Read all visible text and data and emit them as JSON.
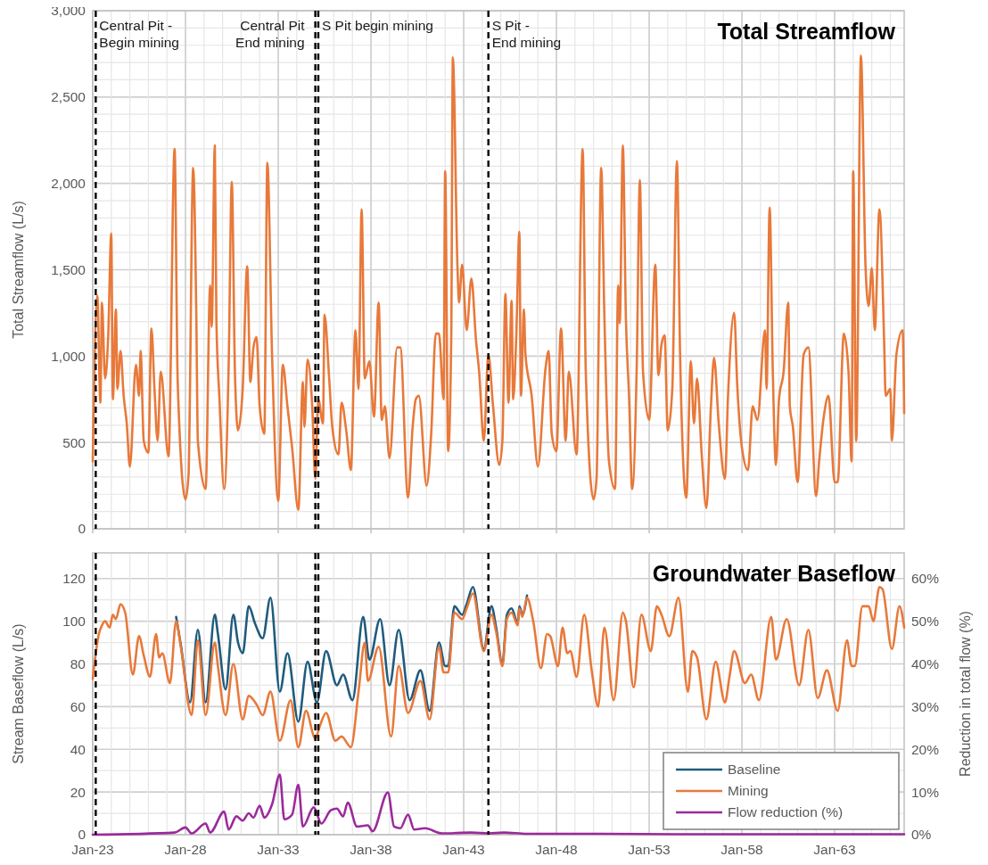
{
  "chart_data": [
    {
      "type": "line",
      "title": "Total Streamflow",
      "ylabel": "Total Streamflow (L/s)",
      "xlim": [
        "2023-01",
        "2066-10"
      ],
      "xticks": [
        {
          "value": "2023-01",
          "label": null
        },
        {
          "value": "2028-01",
          "label": null
        },
        {
          "value": "2033-01",
          "label": null
        },
        {
          "value": "2038-01",
          "label": null
        },
        {
          "value": "2043-01",
          "label": null
        },
        {
          "value": "2048-01",
          "label": null
        },
        {
          "value": "2053-01",
          "label": null
        },
        {
          "value": "2058-01",
          "label": null
        },
        {
          "value": "2063-01",
          "label": null
        }
      ],
      "ylim": [
        0,
        3000
      ],
      "yticks": [
        0,
        500,
        {
          "value": 1000,
          "label": "1,000"
        },
        {
          "value": 1500,
          "label": "1,500"
        },
        {
          "value": 2000,
          "label": "2,000"
        },
        {
          "value": 2500,
          "label": "2,500"
        },
        {
          "value": 3000,
          "label": "3,000"
        }
      ],
      "tick_labels": "y",
      "grid": true,
      "ref_lines": [
        {
          "axis": "x",
          "value": "2023-03",
          "label": "Central Pit -\nBegin mining",
          "color": "#000000",
          "line_style": "dashed"
        },
        {
          "axis": "x",
          "value": "2035-01",
          "label": "Central Pit\nEnd mining",
          "color": "#000000",
          "line_style": "dashed"
        },
        {
          "axis": "x",
          "value": "2035-03",
          "label": "S Pit begin mining",
          "color": "#000000",
          "line_style": "dashed"
        },
        {
          "axis": "x",
          "value": "2044-05",
          "label": "S Pit -\nEnd mining",
          "color": "#000000",
          "line_style": "dashed"
        }
      ],
      "series": [
        {
          "color": "#e8793a",
          "x": [
            "2023-01",
            "2023-04",
            "2023-06",
            "2023-07",
            "2023-09",
            "2023-11",
            "2024-01",
            "2024-02",
            "2024-04",
            "2024-05",
            "2024-07",
            "2024-09",
            "2024-11",
            "2025-01",
            "2025-05",
            "2025-07",
            "2025-08",
            "2025-10",
            "2026-01",
            "2026-03",
            "2026-05",
            "2026-07",
            "2026-09",
            "2027-02",
            "2027-06",
            "2027-08",
            "2028-01",
            "2028-03",
            "2028-06",
            "2028-08",
            "2028-09",
            "2029-02",
            "2029-05",
            "2029-06",
            "2029-08",
            "2029-09",
            "2029-11",
            "2030-02",
            "2030-05",
            "2030-07",
            "2030-09",
            "2030-11",
            "2031-02",
            "2031-05",
            "2031-07",
            "2031-09",
            "2031-11",
            "2032-01",
            "2032-04",
            "2032-06",
            "2032-09",
            "2033-01",
            "2033-04",
            "2033-07",
            "2033-10",
            "2034-02",
            "2034-05",
            "2034-06",
            "2034-08",
            "2034-11",
            "2035-01",
            "2035-03",
            "2035-06",
            "2035-07",
            "2035-10",
            "2035-12",
            "2036-04",
            "2036-06",
            "2036-09",
            "2036-12",
            "2037-03",
            "2037-05",
            "2037-07",
            "2037-09",
            "2037-12",
            "2038-03",
            "2038-06",
            "2038-08",
            "2038-10",
            "2039-01",
            "2039-06",
            "2039-08",
            "2040-01",
            "2040-04",
            "2040-06",
            "2040-08",
            "2041-01",
            "2041-04",
            "2041-07",
            "2041-09",
            "2041-12",
            "2042-01",
            "2042-03",
            "2042-05",
            "2042-06",
            "2042-09",
            "2042-10",
            "2042-12",
            "2043-03",
            "2043-06",
            "2043-09",
            "2043-11",
            "2044-02",
            "2044-05",
            "2044-08",
            "2044-12",
            "2045-02",
            "2045-04",
            "2045-06",
            "2045-08",
            "2045-09",
            "2045-11",
            "2046-01",
            "2046-02",
            "2046-04",
            "2046-05",
            "2046-09",
            "2047-01",
            "2047-06",
            "2047-08",
            "2047-10",
            "2048-01",
            "2048-04",
            "2048-07",
            "2048-09",
            "2049-02",
            "2049-06",
            "2049-08",
            "2050-01",
            "2050-03",
            "2050-06",
            "2050-08",
            "2050-11",
            "2051-03",
            "2051-05",
            "2051-06",
            "2051-08",
            "2051-10",
            "2051-12",
            "2052-02",
            "2052-05",
            "2052-07",
            "2052-09",
            "2053-01",
            "2053-05",
            "2053-07",
            "2053-09",
            "2053-11",
            "2054-01",
            "2054-04",
            "2054-07",
            "2054-09",
            "2055-01",
            "2055-04",
            "2055-06",
            "2055-08",
            "2055-11",
            "2056-02",
            "2056-05",
            "2056-07",
            "2056-10",
            "2057-02",
            "2057-04",
            "2057-08",
            "2057-10",
            "2058-01",
            "2058-05",
            "2058-08",
            "2058-11",
            "2059-04",
            "2059-05",
            "2059-07",
            "2059-09",
            "2059-11",
            "2060-01",
            "2060-04",
            "2060-07",
            "2060-08",
            "2060-10",
            "2061-01",
            "2061-05",
            "2061-08",
            "2062-01",
            "2062-03",
            "2062-06",
            "2062-09",
            "2063-01",
            "2063-03",
            "2063-07",
            "2063-10",
            "2063-12",
            "2064-01",
            "2064-03",
            "2064-06",
            "2064-09",
            "2064-11",
            "2065-01",
            "2065-03",
            "2065-06",
            "2065-09",
            "2065-10",
            "2066-01",
            "2066-02",
            "2066-05",
            "2066-09",
            "2066-10"
          ],
          "values": [
            390,
            1350,
            730,
            1310,
            870,
            1110,
            1710,
            750,
            1270,
            810,
            1030,
            770,
            610,
            360,
            950,
            770,
            1030,
            510,
            440,
            1160,
            810,
            510,
            910,
            420,
            2200,
            850,
            170,
            310,
            2090,
            1250,
            510,
            230,
            1410,
            1170,
            2220,
            1210,
            750,
            230,
            950,
            2010,
            910,
            570,
            810,
            1520,
            850,
            1050,
            1110,
            710,
            550,
            2120,
            1010,
            160,
            950,
            710,
            470,
            110,
            850,
            590,
            980,
            710,
            290,
            750,
            610,
            1240,
            870,
            590,
            430,
            730,
            570,
            340,
            1150,
            810,
            1850,
            870,
            970,
            650,
            1310,
            630,
            710,
            410,
            1050,
            1050,
            180,
            590,
            750,
            770,
            250,
            550,
            1130,
            1130,
            750,
            2070,
            450,
            1110,
            2730,
            1510,
            1310,
            1530,
            1150,
            1450,
            1090,
            910,
            510,
            1010,
            710,
            370,
            510,
            1360,
            730,
            1320,
            750,
            1110,
            1720,
            770,
            1270,
            1010,
            770,
            360,
            930,
            1030,
            550,
            450,
            1160,
            510,
            910,
            430,
            2200,
            910,
            170,
            290,
            2090,
            1250,
            390,
            230,
            1410,
            1190,
            2220,
            1210,
            770,
            230,
            950,
            2020,
            910,
            630,
            1530,
            890,
            1070,
            1120,
            570,
            810,
            2130,
            1010,
            180,
            970,
            610,
            870,
            430,
            120,
            710,
            990,
            610,
            290,
            760,
            1250,
            830,
            470,
            340,
            710,
            630,
            1150,
            810,
            1860,
            910,
            370,
            750,
            910,
            1310,
            710,
            590,
            270,
            1010,
            1050,
            190,
            390,
            650,
            770,
            270,
            270,
            1130,
            910,
            390,
            2070,
            510,
            2740,
            1510,
            1290,
            1510,
            1150,
            1850,
            1090,
            770,
            810,
            510,
            1010,
            1150,
            670
          ]
        }
      ]
    },
    {
      "type": "line",
      "title": "Groundwater Baseflow",
      "ylabel": "Stream Baseflow (L/s)",
      "y2label": "Reduction in total flow (%)",
      "xlim": [
        "2023-01",
        "2066-10"
      ],
      "xticks": [
        {
          "value": "2023-01",
          "label": "Jan-23"
        },
        {
          "value": "2028-01",
          "label": "Jan-28"
        },
        {
          "value": "2033-01",
          "label": "Jan-33"
        },
        {
          "value": "2038-01",
          "label": "Jan-38"
        },
        {
          "value": "2043-01",
          "label": "Jan-43"
        },
        {
          "value": "2048-01",
          "label": "Jan-48"
        },
        {
          "value": "2053-01",
          "label": "Jan-53"
        },
        {
          "value": "2058-01",
          "label": "Jan-58"
        },
        {
          "value": "2063-01",
          "label": "Jan-63"
        }
      ],
      "ylim": [
        0,
        132
      ],
      "yticks": [
        0,
        20,
        40,
        60,
        80,
        100,
        120
      ],
      "y2lim": [
        0,
        66
      ],
      "y2ticks": [
        {
          "value": 0,
          "label": "0%"
        },
        {
          "value": 10,
          "label": "10%"
        },
        {
          "value": 20,
          "label": "20%"
        },
        {
          "value": 30,
          "label": "30%"
        },
        {
          "value": 40,
          "label": "40%"
        },
        {
          "value": 50,
          "label": "50%"
        },
        {
          "value": 60,
          "label": "60%"
        }
      ],
      "grid": true,
      "legend": "bottom right",
      "ref_lines": [
        {
          "axis": "x",
          "value": "2023-03",
          "color": "#000000",
          "line_style": "dashed"
        },
        {
          "axis": "x",
          "value": "2035-01",
          "color": "#000000",
          "line_style": "dashed"
        },
        {
          "axis": "x",
          "value": "2035-03",
          "color": "#000000",
          "line_style": "dashed"
        },
        {
          "axis": "x",
          "value": "2044-05",
          "color": "#000000",
          "line_style": "dashed"
        }
      ],
      "series": [
        {
          "name": "Baseline",
          "color": "#1f5b7e",
          "x": [
            "2027-07",
            "2027-10",
            "2028-04",
            "2028-09",
            "2029-02",
            "2029-08",
            "2029-10",
            "2030-03",
            "2030-08",
            "2030-11",
            "2031-02",
            "2031-06",
            "2031-10",
            "2032-03",
            "2032-08",
            "2033-02",
            "2033-07",
            "2034-02",
            "2034-08",
            "2035-02",
            "2035-08",
            "2036-03",
            "2036-07",
            "2037-01",
            "2037-08",
            "2037-12",
            "2038-07",
            "2039-01",
            "2039-07",
            "2040-02",
            "2040-09",
            "2041-03",
            "2041-09",
            "2042-01",
            "2042-03",
            "2042-07",
            "2042-12",
            "2043-03",
            "2043-07",
            "2044-02",
            "2044-07",
            "2044-10",
            "2045-02",
            "2045-05",
            "2045-08",
            "2045-12",
            "2046-01",
            "2046-03",
            "2046-06"
          ],
          "values": [
            102,
            89,
            62,
            96,
            62,
            103,
            94,
            68,
            103,
            90,
            85,
            107,
            99,
            92,
            111,
            67,
            85,
            53,
            81,
            62,
            86,
            70,
            75,
            63,
            102,
            82,
            101,
            70,
            96,
            63,
            77,
            58,
            90,
            79,
            79,
            107,
            103,
            108,
            116,
            87,
            107,
            97,
            80,
            103,
            106,
            99,
            107,
            103,
            112
          ]
        },
        {
          "name": "Mining",
          "color": "#e8793a",
          "x": [
            "2023-01",
            "2023-05",
            "2023-07",
            "2023-09",
            "2023-12",
            "2024-02",
            "2024-04",
            "2024-07",
            "2024-10",
            "2025-03",
            "2025-07",
            "2025-10",
            "2026-02",
            "2026-06",
            "2026-08",
            "2026-10",
            "2027-03",
            "2027-07",
            "2027-10",
            "2028-05",
            "2028-09",
            "2029-02",
            "2029-08",
            "2029-10",
            "2030-03",
            "2030-08",
            "2031-02",
            "2031-06",
            "2031-11",
            "2032-03",
            "2032-08",
            "2033-02",
            "2033-09",
            "2034-02",
            "2034-07",
            "2035-01",
            "2035-04",
            "2035-08",
            "2036-02",
            "2036-06",
            "2036-12",
            "2037-05",
            "2037-09",
            "2037-11",
            "2038-06",
            "2039-02",
            "2039-07",
            "2040-01",
            "2040-09",
            "2041-03",
            "2041-09",
            "2041-12",
            "2042-03",
            "2042-07",
            "2042-12",
            "2043-03",
            "2043-07",
            "2044-02",
            "2044-07",
            "2044-10",
            "2045-02",
            "2045-05",
            "2045-08",
            "2045-12",
            "2046-01",
            "2046-03",
            "2046-06",
            "2046-10",
            "2047-03",
            "2047-07",
            "2047-09",
            "2048-02",
            "2048-05",
            "2048-08",
            "2048-10",
            "2049-02",
            "2049-07",
            "2049-12",
            "2050-04",
            "2050-08",
            "2051-02",
            "2051-08",
            "2051-10",
            "2052-03",
            "2052-08",
            "2053-02",
            "2053-06",
            "2053-09",
            "2054-02",
            "2054-08",
            "2055-02",
            "2055-05",
            "2055-08",
            "2056-02",
            "2056-08",
            "2057-02",
            "2057-05",
            "2057-08",
            "2058-03",
            "2058-07",
            "2058-12",
            "2059-08",
            "2059-11",
            "2060-06",
            "2061-02",
            "2061-08",
            "2062-02",
            "2062-08",
            "2063-03",
            "2063-09",
            "2063-12",
            "2064-02",
            "2064-07",
            "2064-11",
            "2065-02",
            "2065-06",
            "2065-08",
            "2066-02",
            "2066-07",
            "2066-10"
          ],
          "values": [
            73,
            94,
            98,
            100,
            97,
            103,
            101,
            108,
            104,
            75,
            93,
            84,
            74,
            94,
            83,
            85,
            71,
            100,
            88,
            56,
            91,
            56,
            90,
            79,
            56,
            80,
            54,
            65,
            61,
            56,
            67,
            44,
            63,
            41,
            58,
            45,
            51,
            57,
            44,
            46,
            41,
            67,
            90,
            72,
            88,
            46,
            79,
            57,
            72,
            54,
            88,
            76,
            76,
            104,
            101,
            106,
            113,
            86,
            103,
            95,
            79,
            101,
            104,
            98,
            106,
            102,
            111,
            100,
            78,
            94,
            93,
            79,
            97,
            85,
            86,
            74,
            103,
            76,
            60,
            97,
            63,
            104,
            100,
            69,
            103,
            86,
            107,
            103,
            93,
            111,
            67,
            86,
            83,
            54,
            81,
            62,
            74,
            86,
            71,
            75,
            63,
            102,
            82,
            101,
            70,
            96,
            64,
            77,
            58,
            91,
            79,
            79,
            107,
            107,
            100,
            116,
            115,
            87,
            107,
            97
          ]
        },
        {
          "name": "Flow reduction (%)",
          "color": "#9b2a9b",
          "axis": "y2",
          "x": [
            "2023-01",
            "2027-06",
            "2028-01",
            "2028-05",
            "2029-02",
            "2029-05",
            "2030-02",
            "2030-05",
            "2030-10",
            "2031-02",
            "2031-06",
            "2031-09",
            "2032-01",
            "2032-04",
            "2032-09",
            "2033-02",
            "2033-05",
            "2033-10",
            "2034-02",
            "2034-05",
            "2034-12",
            "2035-05",
            "2035-11",
            "2036-03",
            "2036-07",
            "2036-10",
            "2037-04",
            "2037-11",
            "2038-02",
            "2038-12",
            "2039-04",
            "2039-08",
            "2040-01",
            "2040-05",
            "2040-12",
            "2041-11",
            "2043-06",
            "2044-05",
            "2045-03",
            "2046-06",
            "2050-01",
            "2055-01",
            "2060-01",
            "2066-10"
          ],
          "values": [
            0,
            0.5,
            1.7,
            0.3,
            2.6,
            0.5,
            5.4,
            1.2,
            4.3,
            3.3,
            5.0,
            4.0,
            6.8,
            4.0,
            7.1,
            14.1,
            3.6,
            4.7,
            11.7,
            1.9,
            6.4,
            2.6,
            5.7,
            6.1,
            4.3,
            7.5,
            1.9,
            2.2,
            0.8,
            9.9,
            1.9,
            1.5,
            4.7,
            1.2,
            1.5,
            0.3,
            0.5,
            0.3,
            0.5,
            0.2,
            0.2,
            0.1,
            0.1,
            0.1
          ]
        }
      ]
    }
  ]
}
